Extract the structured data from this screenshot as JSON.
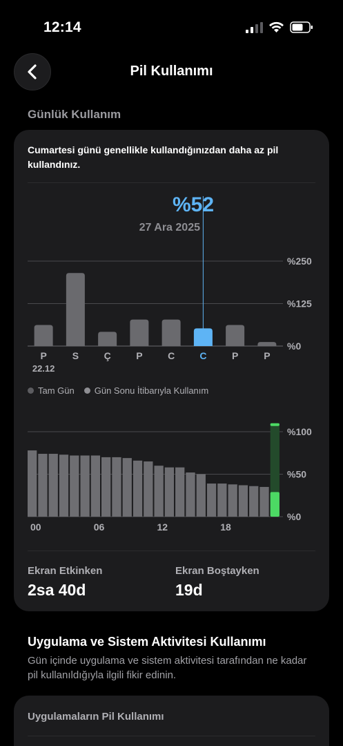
{
  "status_bar": {
    "time": "12:14"
  },
  "nav": {
    "title": "Pil Kullanımı"
  },
  "daily": {
    "section_title": "Günlük Kullanım",
    "message": "Cumartesi günü genellikle kullandığınızdan daha az pil kullandınız.",
    "selected_percent": "%52",
    "selected_date": "27 Ara 2025",
    "legend": [
      "Tam Gün",
      "Gün Sonu İtibarıyla Kullanım"
    ],
    "colors": {
      "accent": "#5eb4f5",
      "bar": "#6a6a6e",
      "green": "#4cd964"
    },
    "screen_on_label": "Ekran Etkinken",
    "screen_on_value": "2sa 40d",
    "screen_idle_label": "Ekran Boştayken",
    "screen_idle_value": "19d"
  },
  "activity": {
    "title": "Uygulama ve Sistem Aktivitesi Kullanımı",
    "description": "Gün içinde uygulama ve sistem aktivitesi tarafından ne kadar pil kullanıldığıyla ilgili fikir edinin.",
    "apps_title": "Uygulamaların Pil Kullanımı"
  },
  "chart_data": [
    {
      "type": "bar",
      "categories": [
        "P",
        "S",
        "Ç",
        "P",
        "C",
        "C",
        "P",
        "P"
      ],
      "first_category_sub": "22.12",
      "values": [
        62,
        215,
        42,
        78,
        78,
        52,
        62,
        12
      ],
      "selected_index": 5,
      "ylim": [
        0,
        250
      ],
      "y_ticks": [
        "%250",
        "%125",
        "%0"
      ],
      "y_tick_values": [
        250,
        125,
        0
      ]
    },
    {
      "type": "bar",
      "x_tick_labels": [
        "00",
        "06",
        "12",
        "18"
      ],
      "x_tick_hours": [
        0,
        6,
        12,
        18
      ],
      "values": [
        78,
        74,
        74,
        73,
        72,
        72,
        72,
        70,
        70,
        69,
        66,
        65,
        60,
        58,
        58,
        52,
        50,
        39,
        39,
        38,
        37,
        36,
        35
      ],
      "current_hour": 23,
      "current_value": 29,
      "current_full": 110,
      "ylim": [
        0,
        100
      ],
      "y_ticks": [
        "%100",
        "%50",
        "%0"
      ],
      "y_tick_values": [
        100,
        50,
        0
      ]
    }
  ]
}
